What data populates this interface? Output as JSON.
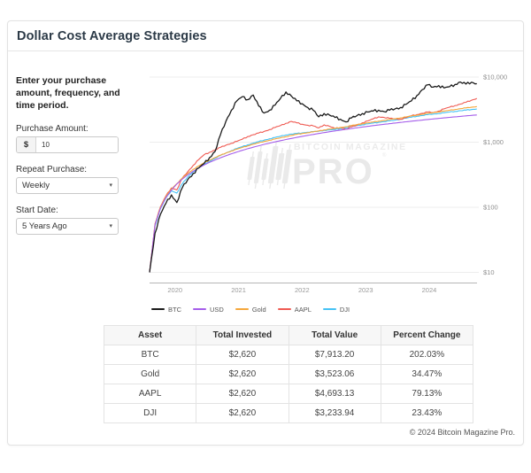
{
  "header": {
    "title": "Dollar Cost Average Strategies"
  },
  "sidebar": {
    "intro": "Enter your purchase amount, frequency, and time period.",
    "purchase_amount": {
      "label": "Purchase Amount:",
      "prefix": "$",
      "value": "10"
    },
    "repeat_purchase": {
      "label": "Repeat Purchase:",
      "value": "Weekly"
    },
    "start_date": {
      "label": "Start Date:",
      "value": "5 Years Ago"
    }
  },
  "watermark": {
    "line1": "BITCOIN MAGAZINE",
    "line2": "PRO",
    "reg": "®"
  },
  "chart_data": {
    "type": "line",
    "yscale": "log",
    "ylim": [
      10,
      10000
    ],
    "x_min": 2019.6,
    "x_max": 2024.78,
    "x_start": 2019.6,
    "x_step_years": 0.08583,
    "x_ticks": [
      2020,
      2021,
      2022,
      2023,
      2024
    ],
    "y_ticks": [
      {
        "v": 10000,
        "label": "$10,000"
      },
      {
        "v": 1000,
        "label": "$1,000"
      },
      {
        "v": 100,
        "label": "$100"
      },
      {
        "v": 10,
        "label": "$10"
      }
    ],
    "legend_position": "bottom-left",
    "grid": true,
    "series": [
      {
        "name": "BTC",
        "color": "#1a1a1a",
        "jitter": 0.045,
        "values": [
          10,
          40,
          78,
          115,
          155,
          118,
          200,
          265,
          330,
          400,
          470,
          580,
          720,
          1300,
          2100,
          3100,
          4300,
          5000,
          4500,
          5300,
          3600,
          2800,
          3100,
          3700,
          4700,
          5900,
          5100,
          4300,
          3900,
          3400,
          3100,
          2450,
          2750,
          2600,
          2400,
          2250,
          2050,
          2350,
          2550,
          2750,
          2900,
          3000,
          3100,
          2950,
          3100,
          3250,
          3400,
          3800,
          4300,
          5200,
          6400,
          7600,
          7000,
          7400,
          6800,
          7100,
          7700,
          8400,
          7800,
          8300,
          7913
        ]
      },
      {
        "name": "USD",
        "color": "#a55eea",
        "jitter": 0,
        "values": [
          10,
          54,
          97,
          141,
          184,
          228,
          271,
          315,
          358,
          402,
          445,
          489,
          532,
          576,
          619,
          663,
          706,
          750,
          793,
          837,
          880,
          924,
          967,
          1011,
          1054,
          1098,
          1141,
          1185,
          1228,
          1272,
          1315,
          1359,
          1402,
          1446,
          1489,
          1533,
          1576,
          1620,
          1663,
          1707,
          1750,
          1794,
          1837,
          1881,
          1924,
          1968,
          2011,
          2055,
          2098,
          2142,
          2185,
          2229,
          2272,
          2316,
          2359,
          2403,
          2446,
          2490,
          2533,
          2577,
          2620
        ]
      },
      {
        "name": "Gold",
        "color": "#f5a73b",
        "jitter": 0.01,
        "values": [
          10,
          55,
          100,
          146,
          192,
          230,
          280,
          330,
          382,
          430,
          480,
          530,
          580,
          630,
          680,
          730,
          780,
          828,
          878,
          930,
          975,
          1025,
          1070,
          1120,
          1165,
          1215,
          1270,
          1320,
          1360,
          1400,
          1440,
          1490,
          1540,
          1590,
          1630,
          1680,
          1730,
          1800,
          1860,
          1920,
          1980,
          2040,
          2100,
          2160,
          2220,
          2290,
          2360,
          2440,
          2520,
          2600,
          2680,
          2760,
          2840,
          2920,
          3000,
          3090,
          3180,
          3270,
          3360,
          3440,
          3523
        ]
      },
      {
        "name": "AAPL",
        "color": "#ef5a52",
        "jitter": 0.018,
        "values": [
          10,
          56,
          102,
          150,
          198,
          185,
          280,
          350,
          440,
          540,
          640,
          700,
          760,
          830,
          900,
          960,
          1030,
          1110,
          1220,
          1300,
          1380,
          1460,
          1560,
          1680,
          1800,
          1950,
          2080,
          1980,
          1880,
          1820,
          1780,
          1650,
          1850,
          1750,
          1620,
          1680,
          1580,
          1720,
          1820,
          1980,
          2120,
          2280,
          2450,
          2400,
          2320,
          2280,
          2250,
          2380,
          2550,
          2650,
          2780,
          2900,
          2850,
          3000,
          3250,
          3450,
          3650,
          3850,
          4100,
          4400,
          4693
        ]
      },
      {
        "name": "DJI",
        "color": "#45c2f5",
        "jitter": 0.012,
        "values": [
          10,
          52,
          95,
          138,
          180,
          165,
          230,
          290,
          350,
          405,
          455,
          510,
          565,
          625,
          680,
          740,
          800,
          855,
          910,
          965,
          1020,
          1075,
          1125,
          1180,
          1235,
          1290,
          1330,
          1360,
          1390,
          1420,
          1450,
          1470,
          1520,
          1540,
          1560,
          1610,
          1660,
          1730,
          1790,
          1850,
          1910,
          1960,
          2020,
          2070,
          2120,
          2180,
          2250,
          2340,
          2420,
          2500,
          2570,
          2650,
          2700,
          2760,
          2830,
          2900,
          2970,
          3040,
          3110,
          3170,
          3234
        ]
      }
    ]
  },
  "table": {
    "headers": [
      "Asset",
      "Total Invested",
      "Total Value",
      "Percent Change"
    ],
    "rows": [
      [
        "BTC",
        "$2,620",
        "$7,913.20",
        "202.03%"
      ],
      [
        "Gold",
        "$2,620",
        "$3,523.06",
        "34.47%"
      ],
      [
        "AAPL",
        "$2,620",
        "$4,693.13",
        "79.13%"
      ],
      [
        "DJI",
        "$2,620",
        "$3,233.94",
        "23.43%"
      ]
    ]
  },
  "footer": {
    "copyright": "© 2024 Bitcoin Magazine Pro."
  }
}
